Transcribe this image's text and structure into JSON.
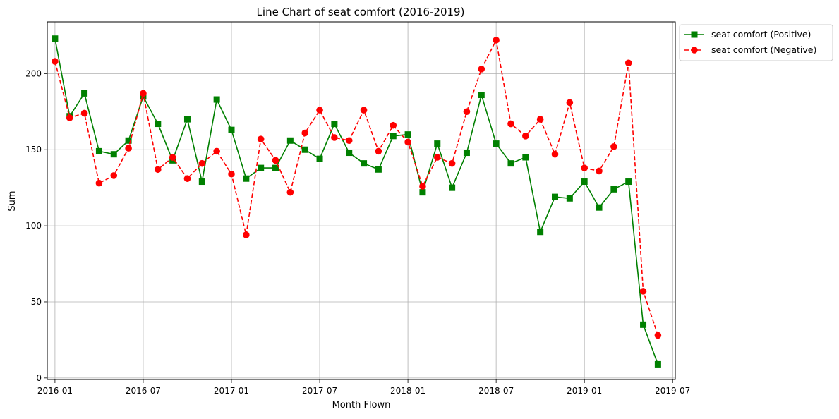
{
  "chart_data": {
    "type": "line",
    "title": "Line Chart of seat comfort (2016-2019)",
    "xlabel": "Month Flown",
    "ylabel": "Sum",
    "grid": true,
    "legend_position": "outside upper-right",
    "x_range": [
      "2015-12",
      "2019-07"
    ],
    "ylim": [
      -1,
      234
    ],
    "x_ticks": [
      "2016-01",
      "2016-07",
      "2017-01",
      "2017-07",
      "2018-01",
      "2018-07",
      "2019-01",
      "2019-07"
    ],
    "y_ticks": [
      "0",
      "50",
      "100",
      "150",
      "200"
    ],
    "x": [
      "2016-01",
      "2016-02",
      "2016-03",
      "2016-04",
      "2016-05",
      "2016-06",
      "2016-07",
      "2016-08",
      "2016-09",
      "2016-10",
      "2016-11",
      "2016-12",
      "2017-01",
      "2017-02",
      "2017-03",
      "2017-04",
      "2017-05",
      "2017-06",
      "2017-07",
      "2017-08",
      "2017-09",
      "2017-10",
      "2017-11",
      "2017-12",
      "2018-01",
      "2018-02",
      "2018-03",
      "2018-04",
      "2018-05",
      "2018-06",
      "2018-07",
      "2018-08",
      "2018-09",
      "2018-10",
      "2018-11",
      "2018-12",
      "2019-01",
      "2019-02",
      "2019-03",
      "2019-04",
      "2019-05",
      "2019-06"
    ],
    "series": [
      {
        "name": "seat comfort (Positive)",
        "color": "#008000",
        "line_style": "solid",
        "marker": "square",
        "values": [
          223,
          172,
          187,
          149,
          147,
          156,
          185,
          167,
          143,
          170,
          129,
          183,
          163,
          131,
          138,
          138,
          156,
          150,
          144,
          167,
          148,
          141,
          137,
          159,
          160,
          122,
          154,
          125,
          148,
          186,
          154,
          141,
          145,
          96,
          119,
          118,
          129,
          112,
          124,
          129,
          35,
          9
        ]
      },
      {
        "name": "seat comfort (Negative)",
        "color": "#ff0000",
        "line_style": "dashed",
        "marker": "circle",
        "values": [
          208,
          171,
          174,
          128,
          133,
          151,
          187,
          137,
          145,
          131,
          141,
          149,
          134,
          94,
          157,
          143,
          122,
          161,
          176,
          158,
          156,
          176,
          149,
          166,
          155,
          126,
          145,
          141,
          175,
          203,
          222,
          167,
          159,
          170,
          147,
          181,
          138,
          136,
          152,
          207,
          57,
          28
        ]
      }
    ]
  }
}
